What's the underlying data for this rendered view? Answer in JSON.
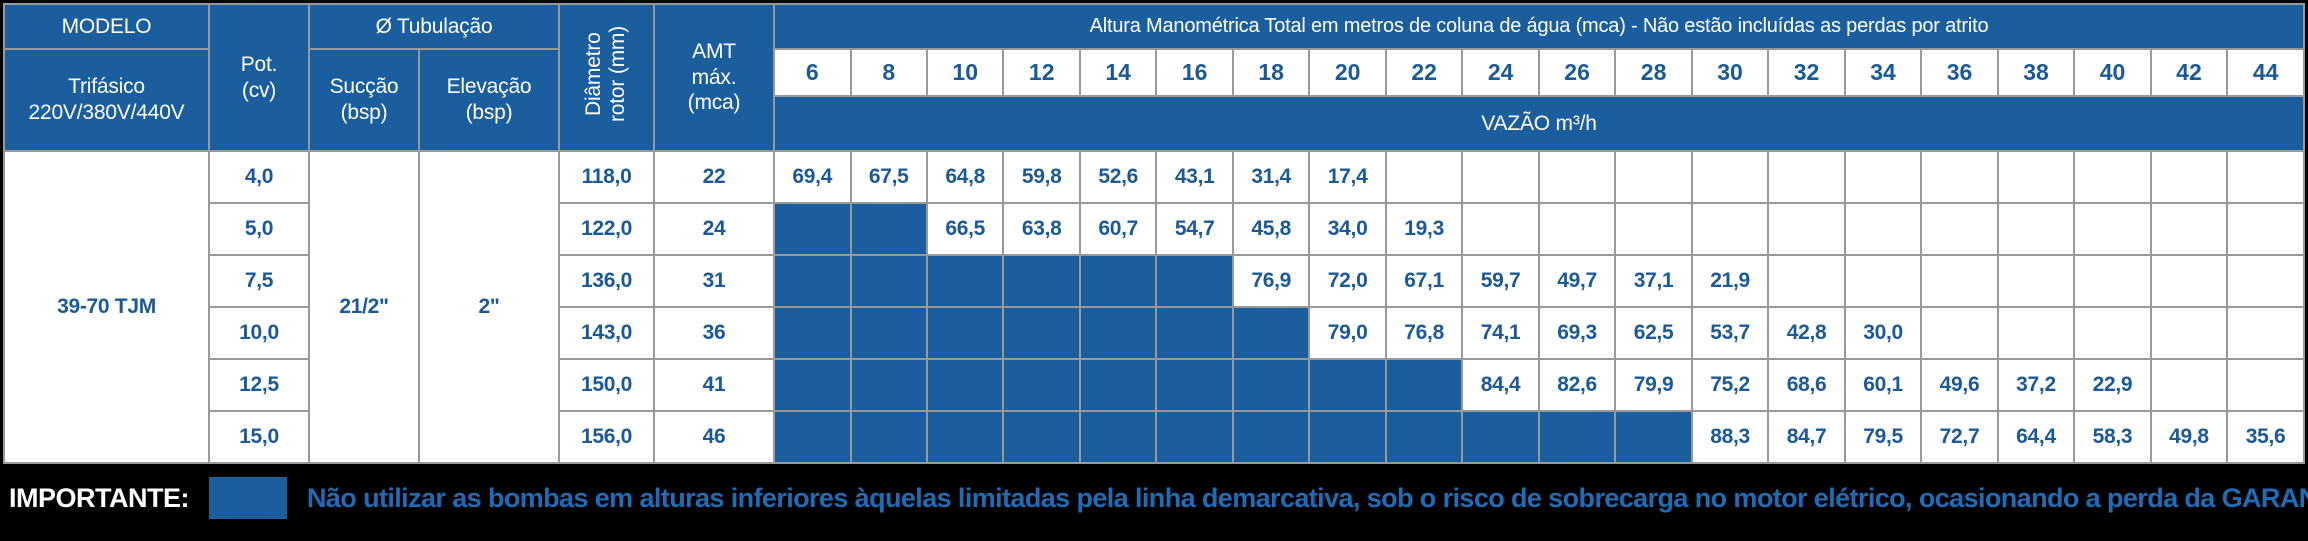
{
  "colors": {
    "header_blue": "#1B5E9E",
    "cell_blue": "#1B5E9E",
    "value_text": "#1A5A9B",
    "note_text": "#1E6CB5",
    "border_gray": "#999999",
    "background_black": "#000000",
    "cell_white": "#FFFFFF"
  },
  "table": {
    "header": {
      "modelo_label": "MODELO",
      "modelo_sub_lines": [
        "Trifásico",
        "220V/380V/440V"
      ],
      "pot_lines": [
        "Pot.",
        "(cv)"
      ],
      "tubulacao_label": "Ø Tubulação",
      "succao_lines": [
        "Sucção",
        "(bsp)"
      ],
      "elevacao_lines": [
        "Elevação",
        "(bsp)"
      ],
      "diametro_lines": [
        "Diâmetro",
        "rotor (mm)"
      ],
      "amt_lines": [
        "AMT",
        "máx.",
        "(mca)"
      ],
      "title": "Altura Manométrica Total em metros de coluna de água (mca) - Não estão incluídas as perdas por atrito",
      "columns": [
        "6",
        "8",
        "10",
        "12",
        "14",
        "16",
        "18",
        "20",
        "22",
        "24",
        "26",
        "28",
        "30",
        "32",
        "34",
        "36",
        "38",
        "40",
        "42",
        "44"
      ],
      "vazao_label": "VAZÃO m³/h"
    },
    "model": "39-70 TJM",
    "succao_value": "21/2\"",
    "elevacao_value": "2\"",
    "rows": [
      {
        "pot": "4,0",
        "diametro": "118,0",
        "amt": "22",
        "blue_cells": 0,
        "values": [
          "69,4",
          "67,5",
          "64,8",
          "59,8",
          "52,6",
          "43,1",
          "31,4",
          "17,4"
        ]
      },
      {
        "pot": "5,0",
        "diametro": "122,0",
        "amt": "24",
        "blue_cells": 2,
        "values": [
          "66,5",
          "63,8",
          "60,7",
          "54,7",
          "45,8",
          "34,0",
          "19,3"
        ]
      },
      {
        "pot": "7,5",
        "diametro": "136,0",
        "amt": "31",
        "blue_cells": 6,
        "values": [
          "76,9",
          "72,0",
          "67,1",
          "59,7",
          "49,7",
          "37,1",
          "21,9"
        ]
      },
      {
        "pot": "10,0",
        "diametro": "143,0",
        "amt": "36",
        "blue_cells": 7,
        "values": [
          "79,0",
          "76,8",
          "74,1",
          "69,3",
          "62,5",
          "53,7",
          "42,8",
          "30,0"
        ]
      },
      {
        "pot": "12,5",
        "diametro": "150,0",
        "amt": "41",
        "blue_cells": 9,
        "values": [
          "84,4",
          "82,6",
          "79,9",
          "75,2",
          "68,6",
          "60,1",
          "49,6",
          "37,2",
          "22,9"
        ]
      },
      {
        "pot": "15,0",
        "diametro": "156,0",
        "amt": "46",
        "blue_cells": 12,
        "values": [
          "88,3",
          "84,7",
          "79,5",
          "72,7",
          "64,4",
          "58,3",
          "49,8",
          "35,6"
        ]
      }
    ],
    "note": {
      "label": "IMPORTANTE:",
      "legend_swatch": "blue-restricted-zone",
      "text": "Não utilizar as bombas em alturas inferiores àquelas limitadas pela linha demarcativa, sob o risco de sobrecarga no motor elétrico, ocasionando a perda da GARANTIA."
    }
  }
}
